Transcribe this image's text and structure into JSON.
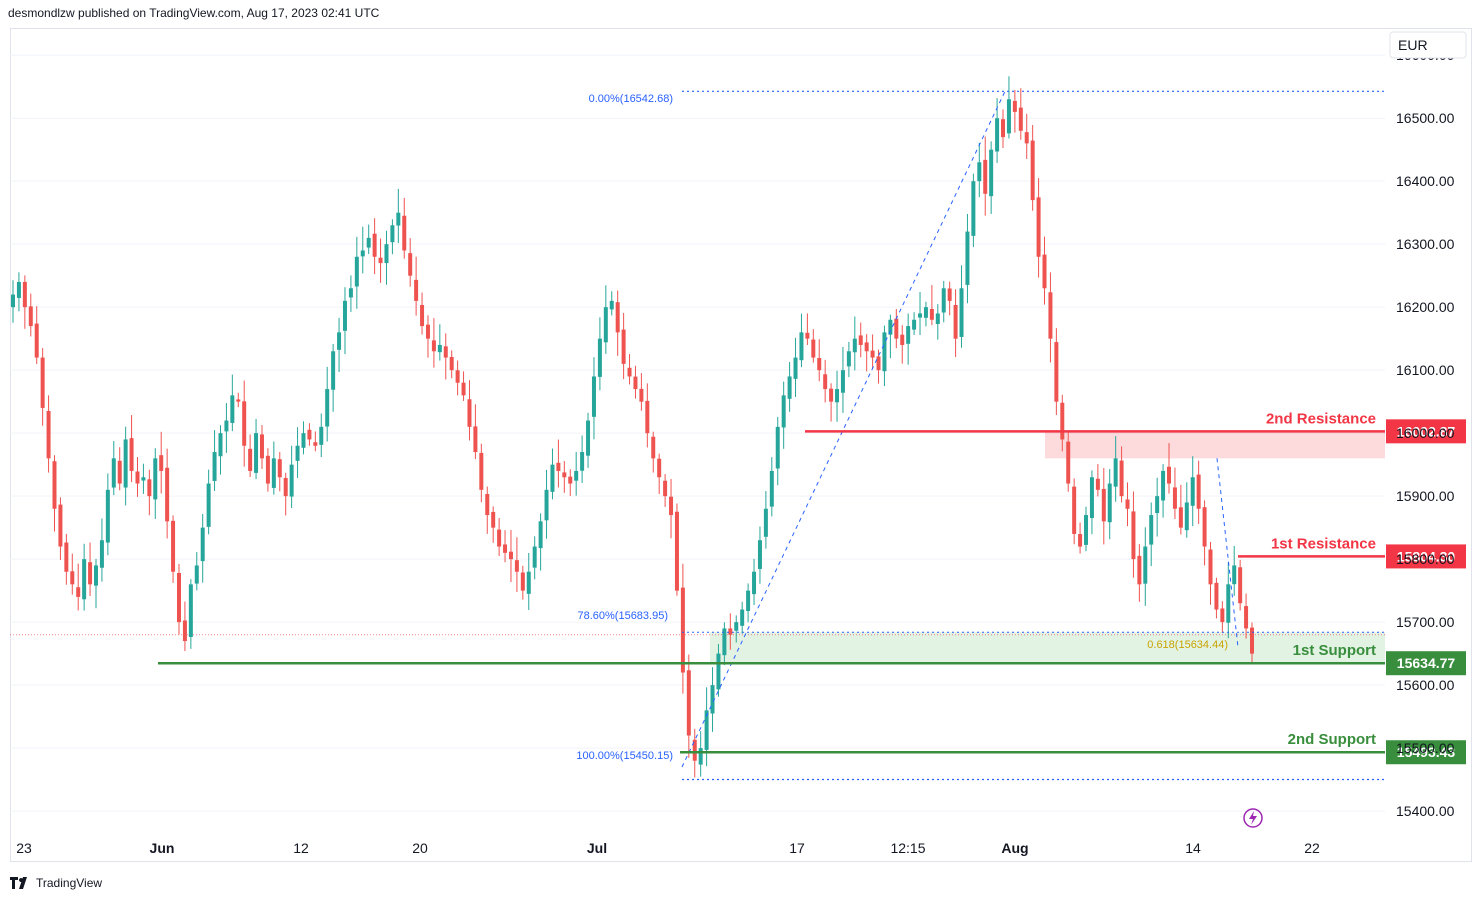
{
  "header": {
    "publisher_line": "desmondlzw published on TradingView.com, Aug 17, 2023 02:41 UTC"
  },
  "footer": {
    "brand": "TradingView"
  },
  "currency_badge": "EUR",
  "colors": {
    "up": "#26a69a",
    "down": "#ef5350",
    "resistance": "#f23645",
    "support": "#388e3c",
    "fib": "#2962ff",
    "fib_gold": "#c9a400"
  },
  "chart_data": {
    "type": "candlestick",
    "ylim": [
      15370,
      16640
    ],
    "y_ticks": [
      15400,
      15500,
      15600,
      15700,
      15800,
      15900,
      16000,
      16100,
      16200,
      16300,
      16400,
      16500,
      16600
    ],
    "x_tick_labels": [
      "23",
      "Jun",
      "12",
      "20",
      "Jul",
      "17",
      "12:15",
      "Aug",
      "14",
      "22"
    ],
    "levels": [
      {
        "name": "2nd Resistance",
        "value": 16002.87,
        "value_label": "16002.87",
        "kind": "resistance"
      },
      {
        "name": "1st Resistance",
        "value": 15804.3,
        "value_label": "15804.30",
        "kind": "resistance"
      },
      {
        "name": "1st Support",
        "value": 15634.77,
        "value_label": "15634.77",
        "kind": "support"
      },
      {
        "name": "2nd Support",
        "value": 15493.43,
        "value_label": "15493.43",
        "kind": "support"
      }
    ],
    "fib_labels": [
      {
        "text": "0.00%(16542.68)",
        "value": 16542.68
      },
      {
        "text": "78.60%(15683.95)",
        "value": 15683.95
      },
      {
        "text": "100.00%(15450.15)",
        "value": 15450.15
      },
      {
        "text": "0.618(15634.44)",
        "value": 15634.44
      }
    ],
    "series_close": [
      16220,
      16240,
      16200,
      16170,
      16120,
      16040,
      15960,
      15880,
      15820,
      15780,
      15760,
      15740,
      15800,
      15760,
      15790,
      15830,
      15910,
      15960,
      15920,
      15990,
      15940,
      15920,
      15930,
      15900,
      15960,
      15940,
      15860,
      15780,
      15700,
      15670,
      15760,
      15790,
      15850,
      15920,
      15970,
      16000,
      16020,
      16060,
      16050,
      15980,
      15940,
      16000,
      15960,
      15920,
      15960,
      15930,
      15900,
      15950,
      15980,
      16000,
      15990,
      15980,
      16010,
      16070,
      16130,
      16160,
      16210,
      16230,
      16280,
      16290,
      16310,
      16280,
      16270,
      16300,
      16330,
      16350,
      16290,
      16250,
      16210,
      16170,
      16150,
      16130,
      16140,
      16120,
      16100,
      16080,
      16060,
      16010,
      15970,
      15910,
      15870,
      15850,
      15820,
      15810,
      15800,
      15780,
      15750,
      15780,
      15820,
      15860,
      15910,
      15950,
      15940,
      15930,
      15920,
      15940,
      15970,
      16020,
      16090,
      16150,
      16200,
      16210,
      16160,
      16110,
      16090,
      16070,
      16050,
      16000,
      15960,
      15930,
      15900,
      15870,
      15750,
      15620,
      15520,
      15480,
      15500,
      15560,
      15600,
      15650,
      15690,
      15680,
      15700,
      15720,
      15750,
      15780,
      15830,
      15880,
      15940,
      16010,
      16060,
      16090,
      16120,
      16160,
      16150,
      16120,
      16100,
      16070,
      16050,
      16070,
      16100,
      16130,
      16150,
      16140,
      16130,
      16120,
      16100,
      16160,
      16180,
      16150,
      16140,
      16170,
      16180,
      16190,
      16200,
      16180,
      16190,
      16230,
      16210,
      16150,
      16230,
      16320,
      16400,
      16430,
      16380,
      16450,
      16500,
      16470,
      16530,
      16510,
      16480,
      16460,
      16370,
      16280,
      16230,
      16150,
      16050,
      15990,
      15920,
      15840,
      15820,
      15870,
      15930,
      15910,
      15860,
      15920,
      15960,
      15900,
      15880,
      15800,
      15760,
      15820,
      15870,
      15900,
      15940,
      15920,
      15880,
      15850,
      15890,
      15930,
      15880,
      15820,
      15760,
      15720,
      15700,
      15760,
      15790,
      15730,
      15690,
      15650
    ]
  }
}
